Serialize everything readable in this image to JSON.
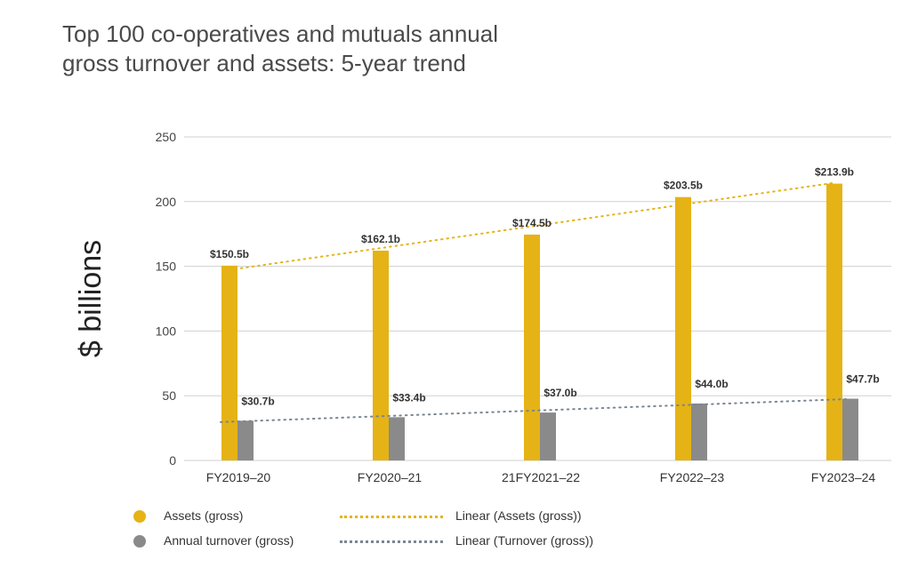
{
  "title_lines": [
    "Top 100 co-operatives and mutuals annual",
    "gross turnover and assets: 5-year trend"
  ],
  "colors": {
    "assets": "#e5b315",
    "turnover": "#8a8a8a",
    "assets_trend": "#e5b315",
    "turnover_trend": "#7a8590",
    "grid": "#d0d0d0"
  },
  "legend": {
    "assets": "Assets (gross)",
    "turnover": "Annual turnover (gross)",
    "assets_trend": "Linear (Assets (gross))",
    "turnover_trend": "Linear (Turnover (gross))"
  },
  "chart_data": {
    "type": "bar",
    "ylabel": "$ billions",
    "ylim": [
      0,
      250
    ],
    "yticks": [
      0,
      50,
      100,
      150,
      200,
      250
    ],
    "grid": true,
    "legend_position": "bottom-left",
    "categories": [
      "FY2019–20",
      "FY2020–21",
      "21FY2021–22",
      "FY2022–23",
      "FY2023–24"
    ],
    "series": [
      {
        "name": "Assets (gross)",
        "values": [
          150.5,
          162.1,
          174.5,
          203.5,
          213.9
        ],
        "data_labels": [
          "$150.5b",
          "$162.1b",
          "$174.5b",
          "$203.5b",
          "$213.9b"
        ],
        "trendline": "Linear (Assets (gross))"
      },
      {
        "name": "Annual turnover (gross)",
        "values": [
          30.7,
          33.4,
          37.0,
          44.0,
          47.7
        ],
        "data_labels": [
          "$30.7b",
          "$33.4b",
          "$37.0b",
          "$44.0b",
          "$47.7b"
        ],
        "trendline": "Linear (Turnover (gross))"
      }
    ]
  }
}
